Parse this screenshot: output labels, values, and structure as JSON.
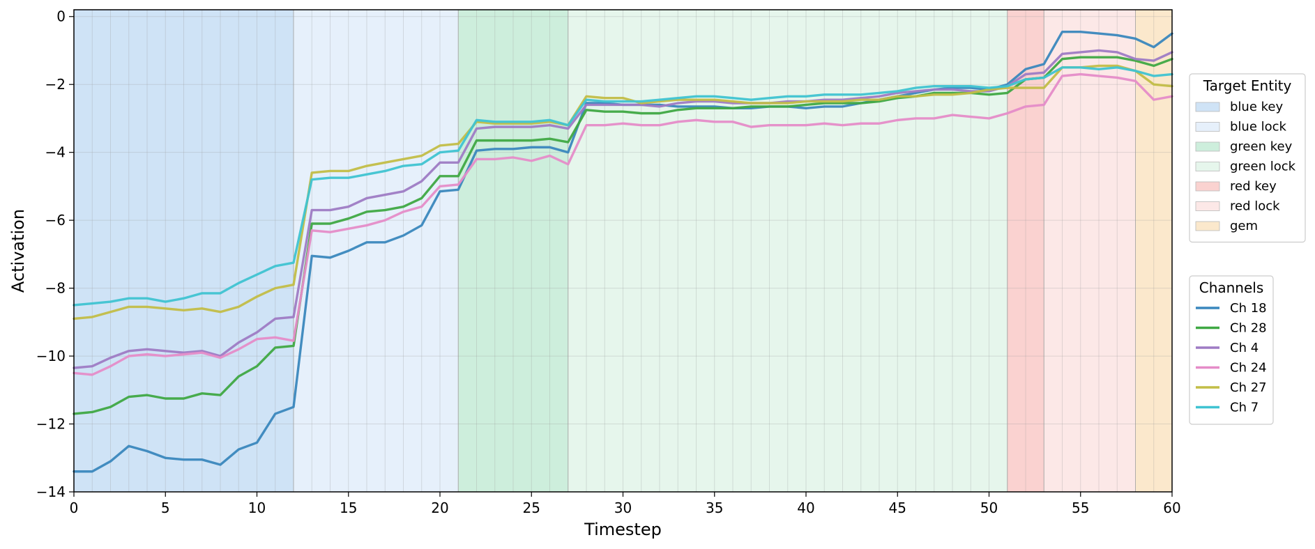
{
  "chart_data": {
    "type": "line",
    "title": "",
    "xlabel": "Timestep",
    "ylabel": "Activation",
    "xlim": [
      0,
      60
    ],
    "ylim": [
      -14,
      0.2
    ],
    "xticks": [
      0,
      5,
      10,
      15,
      20,
      25,
      30,
      35,
      40,
      45,
      50,
      55,
      60
    ],
    "yticks": [
      0,
      -2,
      -4,
      -6,
      -8,
      -10,
      -12,
      -14
    ],
    "xtick_labels": [
      "0",
      "5",
      "10",
      "15",
      "20",
      "25",
      "30",
      "35",
      "40",
      "45",
      "50",
      "55",
      "60"
    ],
    "ytick_labels": [
      "0",
      "−2",
      "−4",
      "−6",
      "−8",
      "−10",
      "−12",
      "−14"
    ],
    "grid": true,
    "regions_legend_title": "Target Entity",
    "regions": [
      {
        "name": "blue key",
        "start": 0,
        "end": 12,
        "color": "#cfe3f6"
      },
      {
        "name": "blue lock",
        "start": 12,
        "end": 21,
        "color": "#e6f0fb"
      },
      {
        "name": "green key",
        "start": 21,
        "end": 27,
        "color": "#cdeedc"
      },
      {
        "name": "green lock",
        "start": 27,
        "end": 51,
        "color": "#e6f6ec"
      },
      {
        "name": "red key",
        "start": 51,
        "end": 53,
        "color": "#fad2d0"
      },
      {
        "name": "red lock",
        "start": 53,
        "end": 58,
        "color": "#fce8e7"
      },
      {
        "name": "gem",
        "start": 58,
        "end": 60,
        "color": "#fbe8cc"
      }
    ],
    "series_legend_title": "Channels",
    "legend_placement": "right",
    "x": [
      0,
      1,
      2,
      3,
      4,
      5,
      6,
      7,
      8,
      9,
      10,
      11,
      12,
      13,
      14,
      15,
      16,
      17,
      18,
      19,
      20,
      21,
      22,
      23,
      24,
      25,
      26,
      27,
      28,
      29,
      30,
      31,
      32,
      33,
      34,
      35,
      36,
      37,
      38,
      39,
      40,
      41,
      42,
      43,
      44,
      45,
      46,
      47,
      48,
      49,
      50,
      51,
      52,
      53,
      54,
      55,
      56,
      57,
      58,
      59,
      60
    ],
    "series": [
      {
        "name": "Ch 18",
        "color": "#3a87bd",
        "values": [
          -13.4,
          -13.4,
          -13.1,
          -12.65,
          -12.8,
          -13.0,
          -13.05,
          -13.05,
          -13.2,
          -12.75,
          -12.55,
          -11.7,
          -11.5,
          -7.05,
          -7.1,
          -6.9,
          -6.65,
          -6.65,
          -6.45,
          -6.15,
          -5.15,
          -5.1,
          -3.95,
          -3.9,
          -3.9,
          -3.85,
          -3.85,
          -4.0,
          -2.55,
          -2.55,
          -2.6,
          -2.6,
          -2.6,
          -2.65,
          -2.65,
          -2.65,
          -2.7,
          -2.7,
          -2.65,
          -2.65,
          -2.7,
          -2.65,
          -2.65,
          -2.55,
          -2.45,
          -2.35,
          -2.25,
          -2.15,
          -2.1,
          -2.1,
          -2.15,
          -2.0,
          -1.55,
          -1.4,
          -0.45,
          -0.45,
          -0.5,
          -0.55,
          -0.65,
          -0.9,
          -0.5
        ]
      },
      {
        "name": "Ch 28",
        "color": "#3fa843",
        "values": [
          -11.7,
          -11.65,
          -11.5,
          -11.2,
          -11.15,
          -11.25,
          -11.25,
          -11.1,
          -11.15,
          -10.6,
          -10.3,
          -9.75,
          -9.7,
          -6.1,
          -6.1,
          -5.95,
          -5.75,
          -5.7,
          -5.6,
          -5.35,
          -4.7,
          -4.7,
          -3.65,
          -3.65,
          -3.65,
          -3.65,
          -3.6,
          -3.7,
          -2.75,
          -2.8,
          -2.8,
          -2.85,
          -2.85,
          -2.75,
          -2.7,
          -2.7,
          -2.7,
          -2.65,
          -2.65,
          -2.65,
          -2.6,
          -2.55,
          -2.55,
          -2.55,
          -2.5,
          -2.4,
          -2.35,
          -2.25,
          -2.25,
          -2.25,
          -2.3,
          -2.25,
          -1.85,
          -1.8,
          -1.25,
          -1.2,
          -1.2,
          -1.2,
          -1.3,
          -1.45,
          -1.25
        ]
      },
      {
        "name": "Ch 4",
        "color": "#9e7bc4",
        "values": [
          -10.35,
          -10.3,
          -10.05,
          -9.85,
          -9.8,
          -9.85,
          -9.9,
          -9.85,
          -10.0,
          -9.6,
          -9.3,
          -8.9,
          -8.85,
          -5.7,
          -5.7,
          -5.6,
          -5.35,
          -5.25,
          -5.15,
          -4.85,
          -4.3,
          -4.3,
          -3.3,
          -3.25,
          -3.25,
          -3.25,
          -3.2,
          -3.3,
          -2.6,
          -2.6,
          -2.6,
          -2.6,
          -2.65,
          -2.55,
          -2.5,
          -2.5,
          -2.55,
          -2.55,
          -2.55,
          -2.5,
          -2.5,
          -2.45,
          -2.45,
          -2.4,
          -2.35,
          -2.25,
          -2.2,
          -2.15,
          -2.15,
          -2.2,
          -2.2,
          -2.05,
          -1.7,
          -1.65,
          -1.1,
          -1.05,
          -1.0,
          -1.05,
          -1.25,
          -1.3,
          -1.05
        ]
      },
      {
        "name": "Ch 24",
        "color": "#e58cc8",
        "values": [
          -10.5,
          -10.55,
          -10.3,
          -10.0,
          -9.95,
          -10.0,
          -9.95,
          -9.9,
          -10.05,
          -9.8,
          -9.5,
          -9.45,
          -9.55,
          -6.3,
          -6.35,
          -6.25,
          -6.15,
          -6.0,
          -5.75,
          -5.6,
          -5.0,
          -4.95,
          -4.2,
          -4.2,
          -4.15,
          -4.25,
          -4.1,
          -4.35,
          -3.2,
          -3.2,
          -3.15,
          -3.2,
          -3.2,
          -3.1,
          -3.05,
          -3.1,
          -3.1,
          -3.25,
          -3.2,
          -3.2,
          -3.2,
          -3.15,
          -3.2,
          -3.15,
          -3.15,
          -3.05,
          -3.0,
          -3.0,
          -2.9,
          -2.95,
          -3.0,
          -2.85,
          -2.65,
          -2.6,
          -1.75,
          -1.7,
          -1.75,
          -1.8,
          -1.9,
          -2.45,
          -2.35
        ]
      },
      {
        "name": "Ch 27",
        "color": "#c2bd47",
        "values": [
          -8.9,
          -8.85,
          -8.7,
          -8.55,
          -8.55,
          -8.6,
          -8.65,
          -8.6,
          -8.7,
          -8.55,
          -8.25,
          -8.0,
          -7.9,
          -4.6,
          -4.55,
          -4.55,
          -4.4,
          -4.3,
          -4.2,
          -4.1,
          -3.8,
          -3.75,
          -3.1,
          -3.15,
          -3.15,
          -3.15,
          -3.1,
          -3.2,
          -2.35,
          -2.4,
          -2.4,
          -2.55,
          -2.5,
          -2.45,
          -2.45,
          -2.45,
          -2.5,
          -2.55,
          -2.55,
          -2.55,
          -2.5,
          -2.5,
          -2.5,
          -2.45,
          -2.45,
          -2.35,
          -2.35,
          -2.3,
          -2.3,
          -2.25,
          -2.15,
          -2.1,
          -2.1,
          -2.1,
          -1.5,
          -1.5,
          -1.45,
          -1.45,
          -1.6,
          -2.0,
          -2.05
        ]
      },
      {
        "name": "Ch 7",
        "color": "#3fc3d1",
        "values": [
          -8.5,
          -8.45,
          -8.4,
          -8.3,
          -8.3,
          -8.4,
          -8.3,
          -8.15,
          -8.15,
          -7.85,
          -7.6,
          -7.35,
          -7.25,
          -4.8,
          -4.75,
          -4.75,
          -4.65,
          -4.55,
          -4.4,
          -4.35,
          -4.0,
          -3.95,
          -3.05,
          -3.1,
          -3.1,
          -3.1,
          -3.05,
          -3.2,
          -2.45,
          -2.5,
          -2.5,
          -2.5,
          -2.45,
          -2.4,
          -2.35,
          -2.35,
          -2.4,
          -2.45,
          -2.4,
          -2.35,
          -2.35,
          -2.3,
          -2.3,
          -2.3,
          -2.25,
          -2.2,
          -2.1,
          -2.05,
          -2.05,
          -2.05,
          -2.1,
          -2.05,
          -1.85,
          -1.8,
          -1.5,
          -1.5,
          -1.55,
          -1.5,
          -1.6,
          -1.75,
          -1.7
        ]
      }
    ]
  }
}
